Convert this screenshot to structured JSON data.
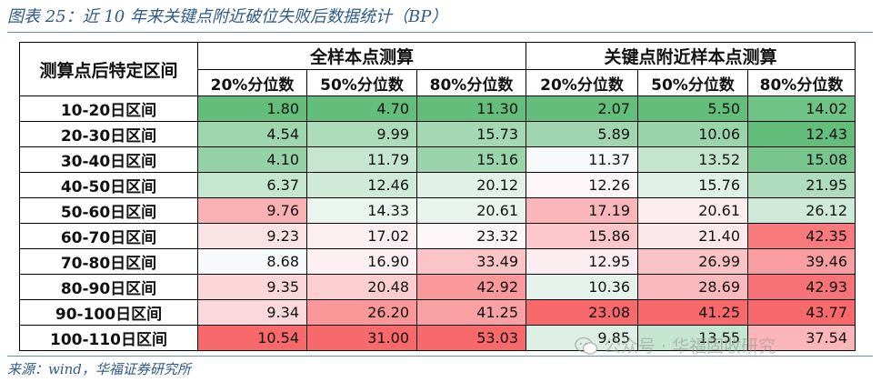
{
  "figure": {
    "title": "图表 25：近 10 年来关键点附近破位失败后数据统计（BP）",
    "source": "来源：wind，华福证券研究所"
  },
  "table": {
    "row_header": "测算点后特定区间",
    "groups": [
      "全样本点测算",
      "关键点附近样本点测算"
    ],
    "subheaders": [
      "20%分位数",
      "50%分位数",
      "80%分位数",
      "20%分位数",
      "50%分位数",
      "80%分位数"
    ],
    "rows": [
      {
        "label": "10-20日区间",
        "cells": [
          "1.80",
          "4.70",
          "11.30",
          "2.07",
          "5.50",
          "14.02"
        ]
      },
      {
        "label": "20-30日区间",
        "cells": [
          "4.54",
          "9.99",
          "15.73",
          "5.89",
          "10.06",
          "12.43"
        ]
      },
      {
        "label": "30-40日区间",
        "cells": [
          "4.10",
          "11.79",
          "15.16",
          "11.37",
          "13.52",
          "15.08"
        ]
      },
      {
        "label": "40-50日区间",
        "cells": [
          "6.37",
          "12.46",
          "20.12",
          "12.26",
          "15.76",
          "21.95"
        ]
      },
      {
        "label": "50-60日区间",
        "cells": [
          "9.76",
          "14.33",
          "20.61",
          "17.19",
          "20.61",
          "26.12"
        ]
      },
      {
        "label": "60-70日区间",
        "cells": [
          "9.23",
          "17.02",
          "23.32",
          "15.86",
          "21.40",
          "42.35"
        ]
      },
      {
        "label": "70-80日区间",
        "cells": [
          "8.68",
          "16.90",
          "33.49",
          "12.95",
          "26.99",
          "39.46"
        ]
      },
      {
        "label": "80-90日区间",
        "cells": [
          "9.35",
          "20.48",
          "42.92",
          "10.36",
          "28.69",
          "42.93"
        ]
      },
      {
        "label": "90-100日区间",
        "cells": [
          "9.34",
          "26.20",
          "41.25",
          "23.08",
          "41.25",
          "43.77"
        ]
      },
      {
        "label": "100-110日区间",
        "cells": [
          "10.54",
          "31.00",
          "53.03",
          "9.85",
          "13.55",
          "37.54"
        ]
      }
    ],
    "scale_colors": {
      "low": "#63be7b",
      "mid": "#fcfcff",
      "high": "#f8696b"
    }
  },
  "watermark": {
    "icon": "wechat-icon",
    "text": "公众号 · 华福固收研究"
  }
}
